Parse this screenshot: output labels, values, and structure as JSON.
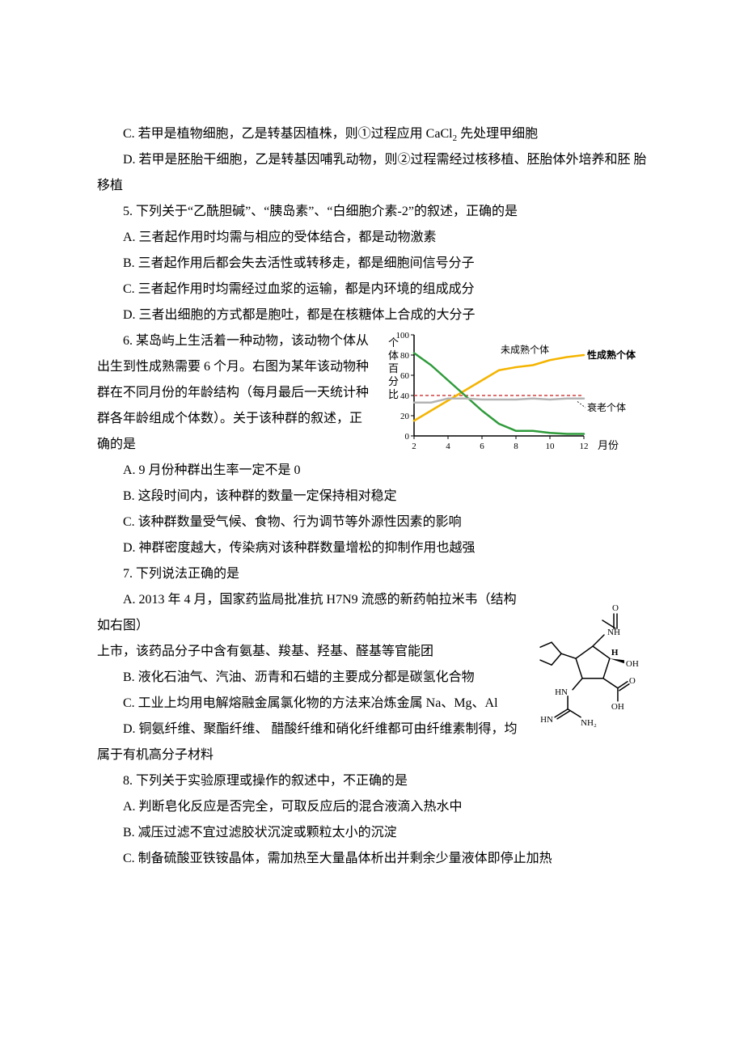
{
  "q4": {
    "c": "C. 若甲是植物细胞，乙是转基因植株，则①过程应用 CaCl",
    "c_sub": "2",
    "c_after": " 先处理甲细胞",
    "d": "D. 若甲是胚胎干细胞，乙是转基因哺乳动物，则②过程需经过核移植、胚胎体外培养和胚 胎移植"
  },
  "q5": {
    "stem": "5. 下列关于“乙酰胆碱”、“胰岛素”、“白细胞介素-2”的叙述，正确的是",
    "a": "A. 三者起作用时均需与相应的受体结合，都是动物激素",
    "b": "B. 三者起作用后都会失去活性或转移走，都是细胞间信号分子",
    "c": "C. 三者起作用时均需经过血浆的运输，都是内环境的组成成分",
    "d": "D. 三者出细胞的方式都是胞吐，都是在核糖体上合成的大分子"
  },
  "q6": {
    "stem": "6. 某岛屿上生活着一种动物，该动物个体从出生到性成熟需要 6 个月。右图为某年该动物种群在不同月份的年龄结构（每月最后一天统计种 群各年龄组成个体数）。关于该种群的叙述，正确的是",
    "a": "A. 9 月份种群出生率一定不是 0",
    "b": "B. 这段时间内，该种群的数量一定保持相对稳定",
    "c": "C. 该种群数量受气候、食物、行为调节等外源性因素的影响",
    "d": "D. 神群密度越大，传染病对该种群数量增松的抑制作用也越强"
  },
  "q7": {
    "stem": "7. 下列说法正确的是",
    "a1": "A. 2013 年 4 月，国家药监局批准抗 H7N9 流感的新药帕拉米韦（结构 如右图）",
    "a2": "上市，该药品分子中含有氨基、羧基、羟基、醛基等官能团",
    "b": "B. 液化石油气、汽油、沥青和石蜡的主要成分都是碳氢化合物",
    "c": "C. 工业上均用电解熔融金属氯化物的方法来冶炼金属 Na、Mg、Al",
    "d": "D. 铜氨纤维、聚酯纤维、 醋酸纤维和硝化纤维都可由纤维素制得，均属于有机高分子材料"
  },
  "q8": {
    "stem": "8. 下列关于实验原理或操作的叙述中，不正确的是",
    "a": "A. 判断皂化反应是否完全，可取反应后的混合液滴入热水中",
    "b": "B. 减压过滤不宜过滤胶状沉淀或颗粒太小的沉淀",
    "c": "C. 制备硫酸亚铁铵晶体，需加热至大量晶体析出并剩余少量液体即停止加热"
  },
  "chart": {
    "type": "line",
    "y_label": "个体百分比",
    "x_label": "月份",
    "x_ticks": [
      2,
      4,
      6,
      8,
      10,
      12
    ],
    "y_ticks": [
      0,
      20,
      40,
      60,
      80,
      100
    ],
    "y_lim": [
      0,
      100
    ],
    "x_lim": [
      2,
      12
    ],
    "series": [
      {
        "name": "性成熟个体",
        "label": "性成熟个体",
        "color": "#f4b400",
        "stroke_width": 2.5,
        "points": [
          {
            "x": 2,
            "y": 15
          },
          {
            "x": 3,
            "y": 25
          },
          {
            "x": 4,
            "y": 35
          },
          {
            "x": 5,
            "y": 45
          },
          {
            "x": 6,
            "y": 55
          },
          {
            "x": 7,
            "y": 65
          },
          {
            "x": 8,
            "y": 68
          },
          {
            "x": 9,
            "y": 70
          },
          {
            "x": 10,
            "y": 75
          },
          {
            "x": 11,
            "y": 78
          },
          {
            "x": 12,
            "y": 80
          }
        ]
      },
      {
        "name": "未成熟个体",
        "label": "未成熟个体",
        "color": "#2e9b3a",
        "stroke_width": 2.5,
        "points": [
          {
            "x": 2,
            "y": 82
          },
          {
            "x": 3,
            "y": 70
          },
          {
            "x": 4,
            "y": 55
          },
          {
            "x": 5,
            "y": 40
          },
          {
            "x": 6,
            "y": 25
          },
          {
            "x": 7,
            "y": 12
          },
          {
            "x": 8,
            "y": 5
          },
          {
            "x": 9,
            "y": 5
          },
          {
            "x": 10,
            "y": 3
          },
          {
            "x": 11,
            "y": 2
          },
          {
            "x": 12,
            "y": 2
          }
        ]
      },
      {
        "name": "衰老个体",
        "label": "衰老个体",
        "color": "#b4b4b4",
        "stroke_width": 2.5,
        "points": [
          {
            "x": 2,
            "y": 33
          },
          {
            "x": 3,
            "y": 33
          },
          {
            "x": 4,
            "y": 37
          },
          {
            "x": 5,
            "y": 37
          },
          {
            "x": 6,
            "y": 36
          },
          {
            "x": 7,
            "y": 36
          },
          {
            "x": 8,
            "y": 36
          },
          {
            "x": 9,
            "y": 37
          },
          {
            "x": 10,
            "y": 36
          },
          {
            "x": 11,
            "y": 37
          },
          {
            "x": 12,
            "y": 37
          }
        ]
      }
    ],
    "ref_line": {
      "y": 40,
      "color": "#d04040",
      "dash": "4 3",
      "stroke_width": 1.4
    },
    "axis_color": "#000000",
    "tick_font_size": 11,
    "label_font_size": 13,
    "background_color": "#ffffff"
  },
  "molecule": {
    "type": "diagram",
    "stroke": "#000000",
    "stroke_width": 1.5,
    "label_font_size": 11,
    "labels": {
      "O": "O",
      "NH": "NH",
      "H": "H",
      "OH": "OH",
      "HN": "HN",
      "HN2": "HN",
      "NH2": "NH₂"
    }
  }
}
